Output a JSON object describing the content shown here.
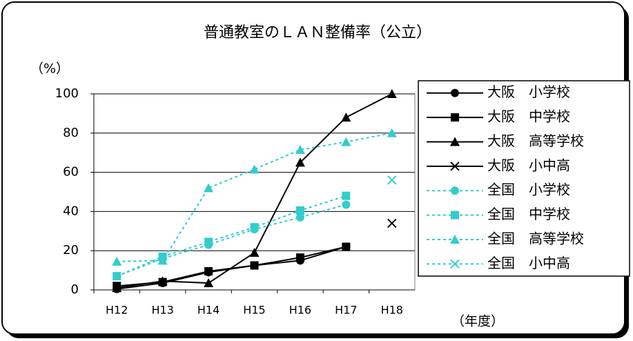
{
  "chart_data": {
    "type": "line",
    "title": "普通教室のＬＡＮ整備率（公立）",
    "y_label": "（%）",
    "x_label": "（年度）",
    "categories": [
      "H12",
      "H13",
      "H14",
      "H15",
      "H16",
      "H17",
      "H18"
    ],
    "ylim": [
      0,
      100
    ],
    "yticks": [
      0,
      20,
      40,
      60,
      80,
      100
    ],
    "grid": true,
    "legend": "right",
    "series": [
      {
        "name": "大阪　小学校",
        "color": "#000000",
        "marker": "circle",
        "line_style": "solid",
        "values": [
          0.5,
          3.5,
          9,
          12.5,
          15,
          22,
          null
        ]
      },
      {
        "name": "大阪　中学校",
        "color": "#000000",
        "marker": "square",
        "line_style": "solid",
        "values": [
          2,
          4,
          9.5,
          12.5,
          16.5,
          22,
          null
        ]
      },
      {
        "name": "大阪　高等学校",
        "color": "#000000",
        "marker": "triangle",
        "line_style": "solid",
        "values": [
          1,
          4.5,
          3.5,
          19,
          65,
          88,
          100
        ]
      },
      {
        "name": "大阪　小中高",
        "color": "#000000",
        "marker": "x",
        "line_style": "solid",
        "values": [
          null,
          null,
          null,
          null,
          null,
          null,
          34
        ]
      },
      {
        "name": "全国　小学校",
        "color": "#33cccc",
        "marker": "circle",
        "line_style": "dashed",
        "values": [
          7,
          16,
          23,
          31,
          37,
          43.5,
          null
        ]
      },
      {
        "name": "全国　中学校",
        "color": "#33cccc",
        "marker": "square",
        "line_style": "dashed",
        "values": [
          7,
          17,
          24.5,
          32,
          40.5,
          48,
          null
        ]
      },
      {
        "name": "全国　高等学校",
        "color": "#33cccc",
        "marker": "triangle",
        "line_style": "dashed",
        "values": [
          14.5,
          15,
          52,
          61.5,
          71.5,
          75.5,
          80
        ]
      },
      {
        "name": "全国　小中高",
        "color": "#33cccc",
        "marker": "x",
        "line_style": "dashed",
        "values": [
          null,
          null,
          null,
          null,
          null,
          null,
          56
        ]
      }
    ]
  }
}
